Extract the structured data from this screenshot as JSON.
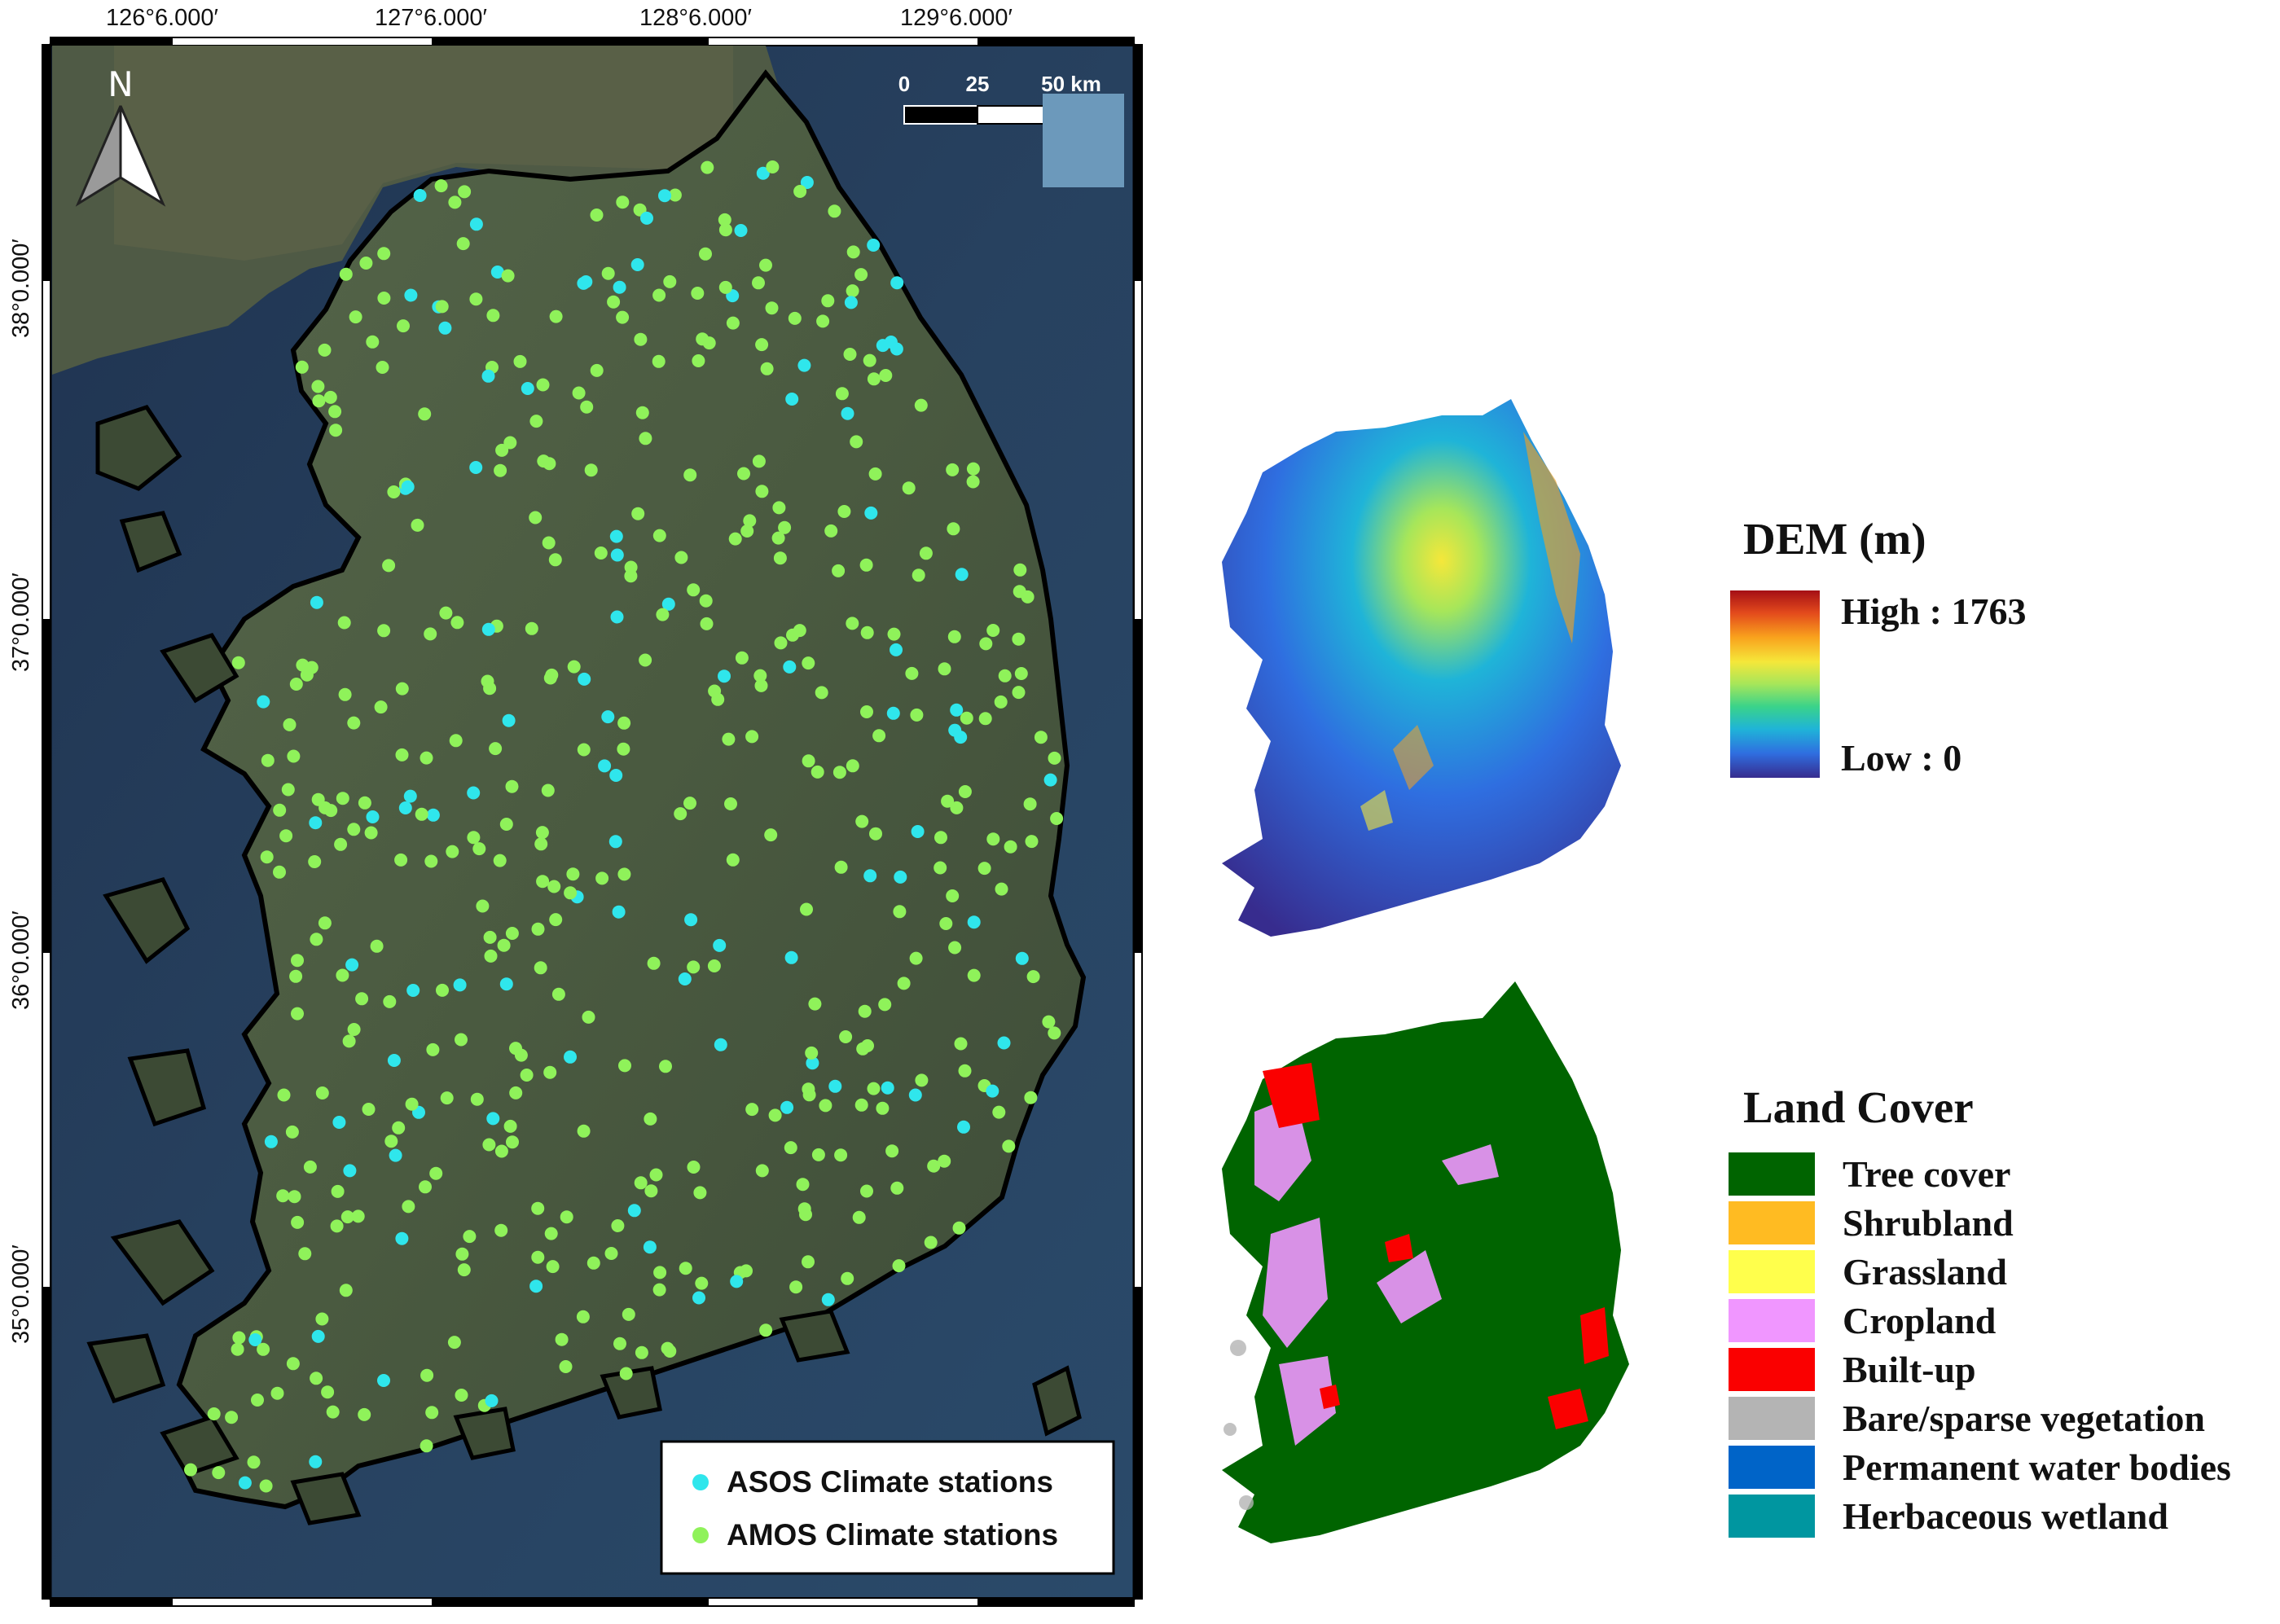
{
  "main_map": {
    "lon_ticks": [
      "126°6.000′",
      "127°6.000′",
      "128°6.000′",
      "129°6.000′"
    ],
    "lat_ticks": [
      "38°0.000′",
      "37°0.000′",
      "36°0.000′",
      "35°0.000′"
    ],
    "north_arrow": {
      "label": "N",
      "icon": "north-arrow-icon"
    },
    "scale_bar": {
      "labels": [
        "0",
        "25",
        "50 km"
      ]
    },
    "legend": [
      {
        "label": "ASOS Climate stations",
        "color": "#2fe6ec"
      },
      {
        "label": "AMOS Climate stations",
        "color": "#8ff25a"
      }
    ]
  },
  "dem_legend": {
    "title": "DEM (m)",
    "high_label": "High : 1763",
    "low_label": "Low : 0"
  },
  "landcover_legend": {
    "title": "Land Cover",
    "classes": [
      {
        "label": "Tree cover",
        "color": "#006400"
      },
      {
        "label": "Shrubland",
        "color": "#ffbb22"
      },
      {
        "label": "Grassland",
        "color": "#ffff4c"
      },
      {
        "label": "Cropland",
        "color": "#f096ff"
      },
      {
        "label": "Built-up",
        "color": "#fa0000"
      },
      {
        "label": "Bare/sparse vegetation",
        "color": "#b4b4b4"
      },
      {
        "label": "Permanent water bodies",
        "color": "#0064c8"
      },
      {
        "label": "Herbaceous wetland",
        "color": "#0096a0"
      }
    ]
  }
}
